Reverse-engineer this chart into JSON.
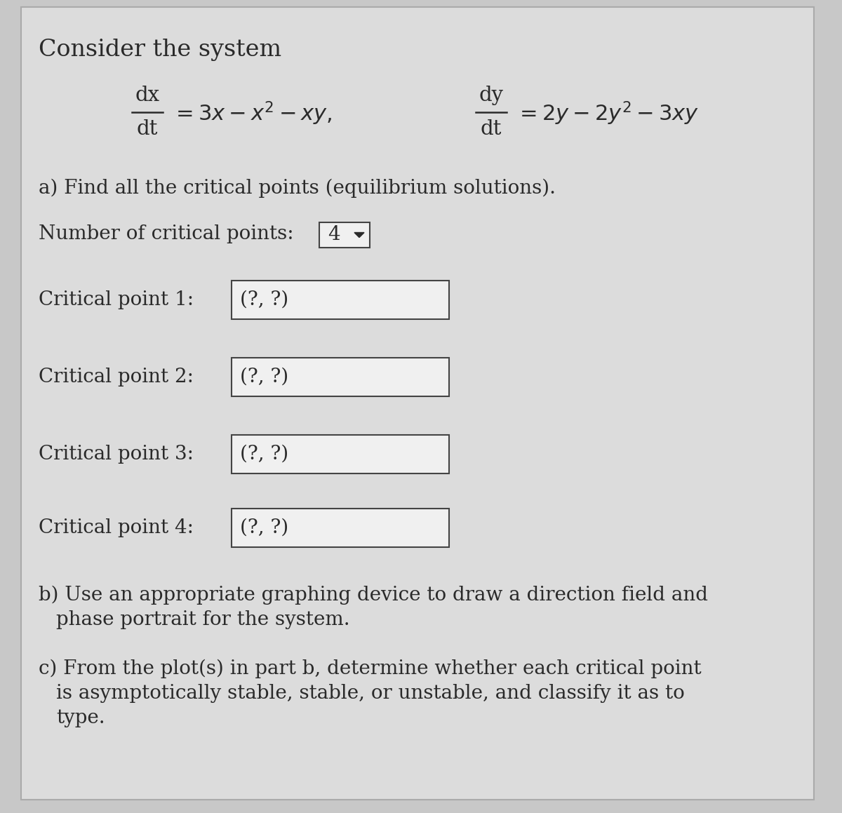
{
  "bg_color": "#c8c8c8",
  "panel_color": "#dcdcdc",
  "text_color": "#2a2a2a",
  "title": "Consider the system",
  "part_a": "a) Find all the critical points (equilibrium solutions).",
  "num_cp_label": "Number of critical points:",
  "num_cp_value": "4",
  "cp_labels": [
    "Critical point 1:",
    "Critical point 2:",
    "Critical point 3:",
    "Critical point 4:"
  ],
  "cp_values": [
    "(?, ?)",
    "(?, ?)",
    "(?, ?)",
    "(?, ?)"
  ],
  "part_b_1": "b) Use an appropriate graphing device to draw a direction field and",
  "part_b_2": "phase portrait for the system.",
  "part_c_1": "c) From the plot(s) in part b, determine whether each critical point",
  "part_c_2": "is asymptotically stable, stable, or unstable, and classify it as to",
  "part_c_3": "type.",
  "box_color": "#f0f0f0",
  "box_edge_color": "#444444",
  "title_fontsize": 24,
  "text_fontsize": 20,
  "eq_fontsize": 21
}
